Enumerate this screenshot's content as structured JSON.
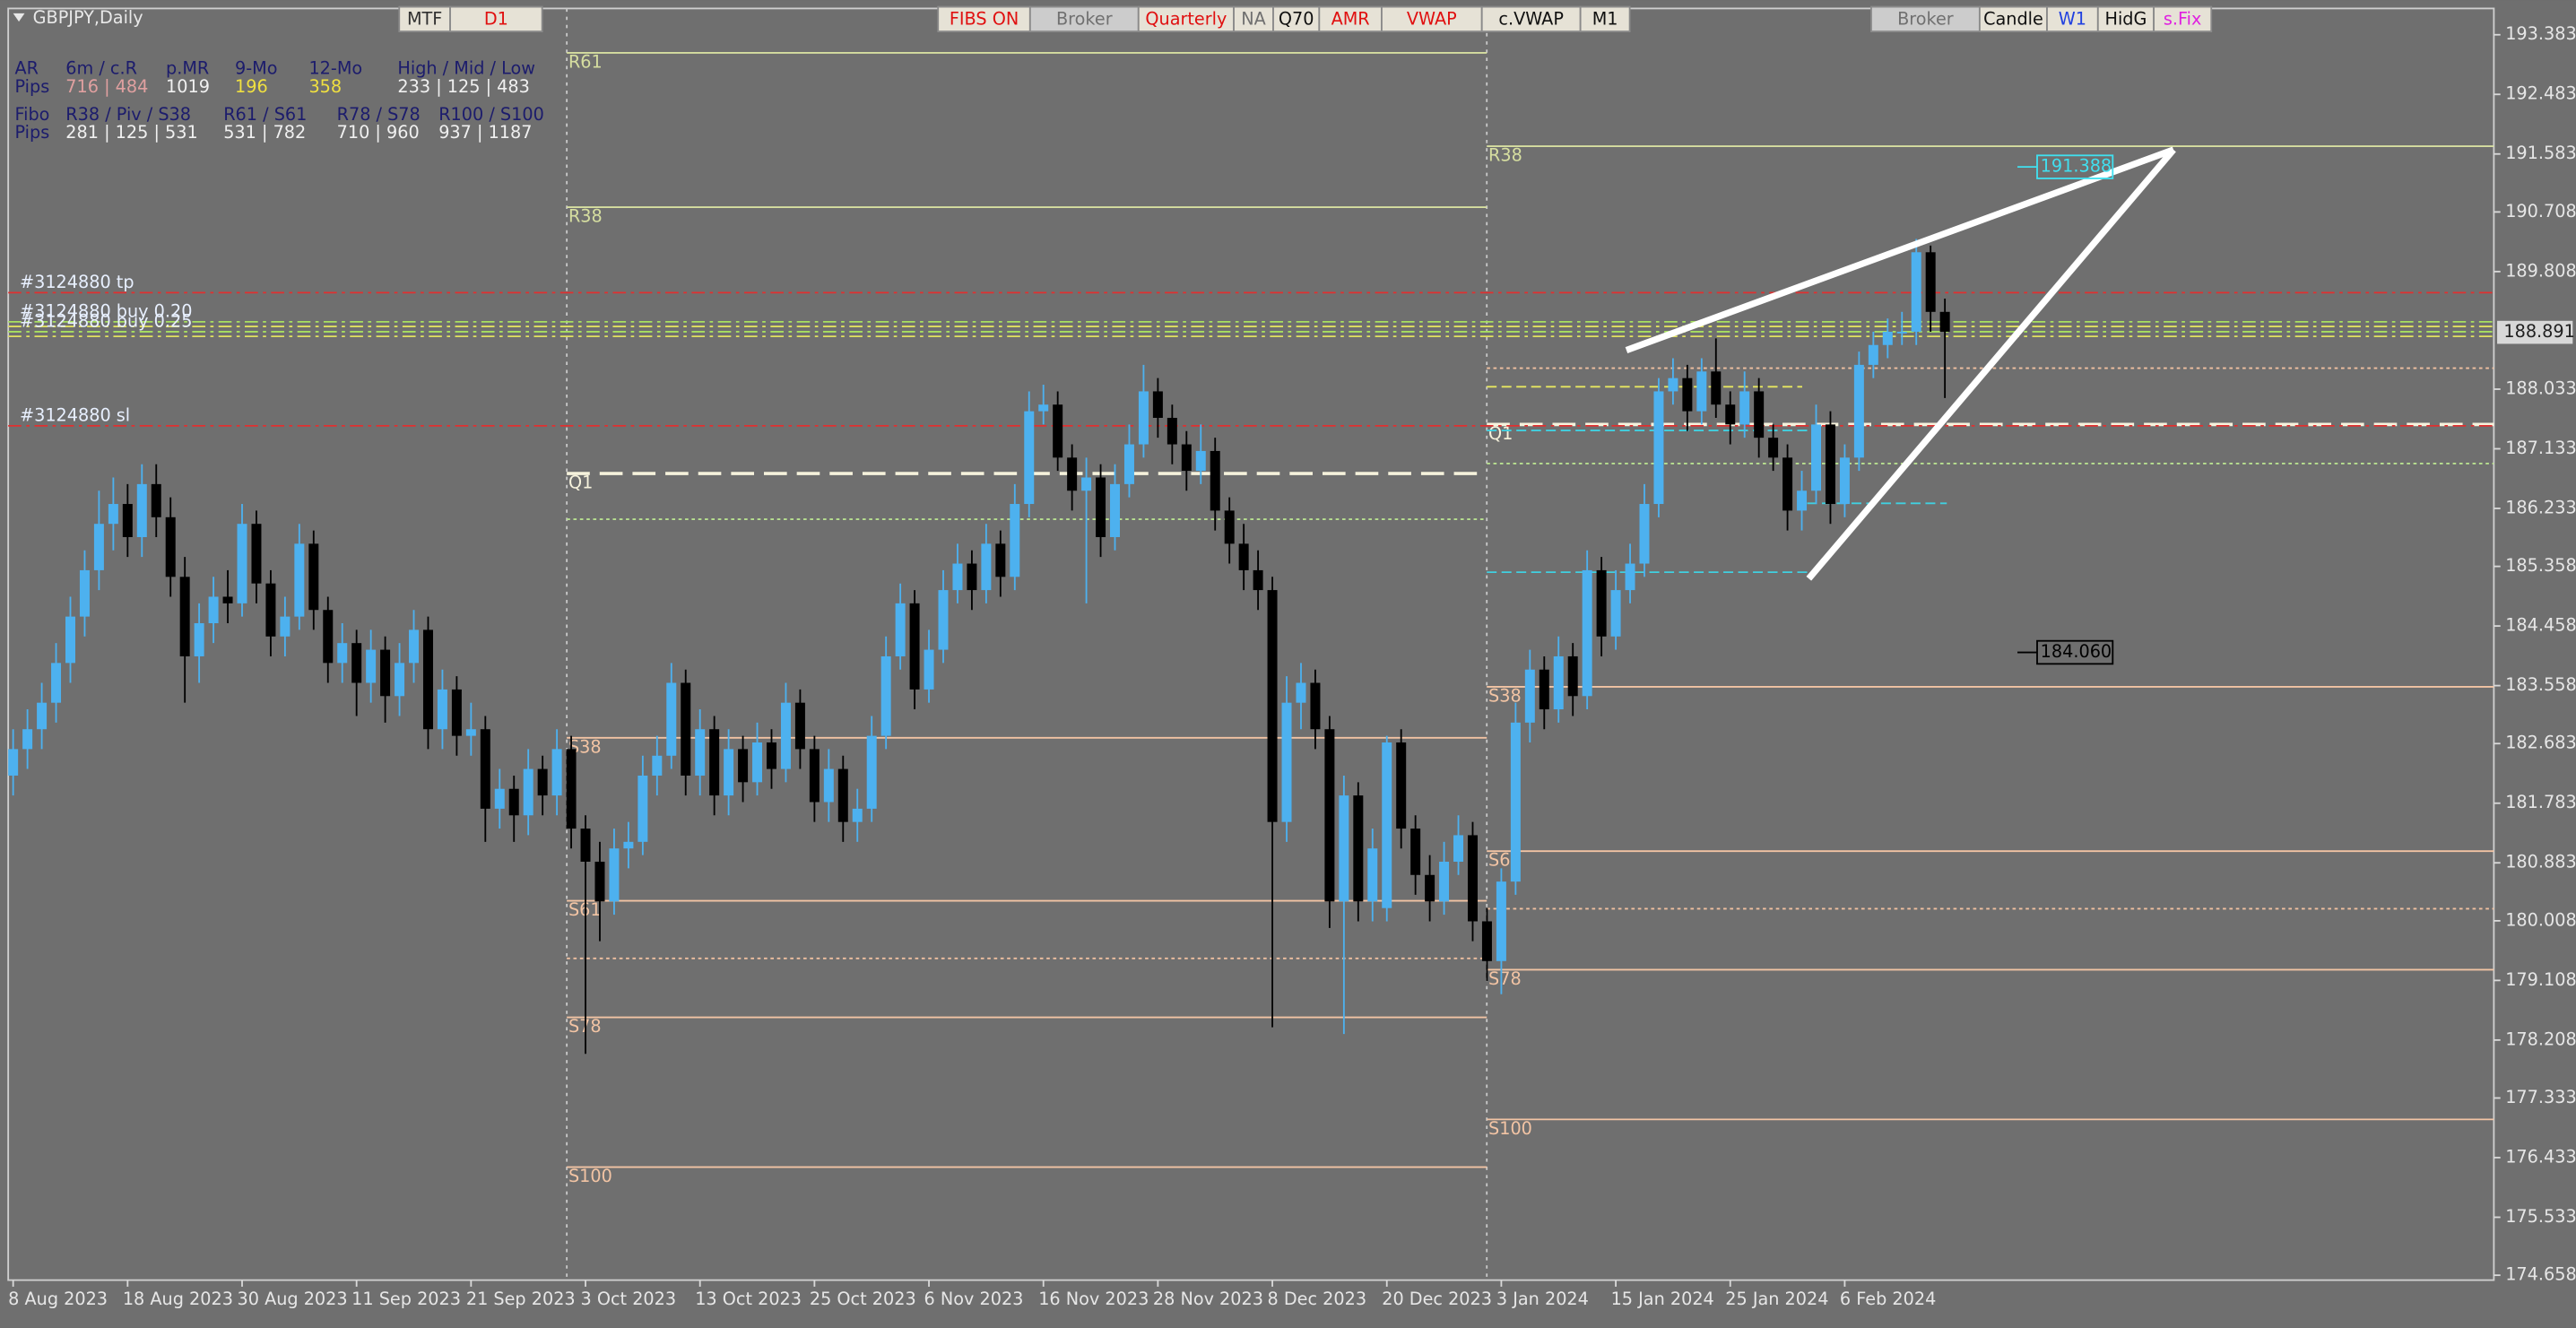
{
  "chart_data": {
    "type": "candlestick",
    "title": "GBPJPY,Daily",
    "up_color": "#4db1ef",
    "down_color": "#000000",
    "background": "#6f6f6f",
    "categories": [
      "8 Aug 2023",
      null,
      null,
      null,
      null,
      null,
      null,
      null,
      "18 Aug 2023",
      null,
      null,
      null,
      null,
      null,
      null,
      null,
      "30 Aug 2023",
      null,
      null,
      null,
      null,
      null,
      null,
      null,
      "11 Sep 2023",
      null,
      null,
      null,
      null,
      null,
      null,
      null,
      "21 Sep 2023",
      null,
      null,
      null,
      null,
      null,
      null,
      null,
      "3 Oct 2023",
      null,
      null,
      null,
      null,
      null,
      null,
      null,
      "13 Oct 2023",
      null,
      null,
      null,
      null,
      null,
      null,
      null,
      "25 Oct 2023",
      null,
      null,
      null,
      null,
      null,
      null,
      null,
      "6 Nov 2023",
      null,
      null,
      null,
      null,
      null,
      null,
      null,
      "16 Nov 2023",
      null,
      null,
      null,
      null,
      null,
      null,
      null,
      "28 Nov 2023",
      null,
      null,
      null,
      null,
      null,
      null,
      null,
      "8 Dec 2023",
      null,
      null,
      null,
      null,
      null,
      null,
      null,
      "20 Dec 2023",
      null,
      null,
      null,
      null,
      null,
      null,
      null,
      "3 Jan 2024",
      null,
      null,
      null,
      null,
      null,
      null,
      null,
      "15 Jan 2024",
      null,
      null,
      null,
      null,
      null,
      null,
      null,
      "25 Jan 2024",
      null,
      null,
      null,
      null,
      null,
      null,
      null,
      "6 Feb 2024",
      null,
      null,
      null,
      null,
      null,
      null,
      null
    ],
    "ohlc": [
      [
        182.2,
        182.9,
        181.9,
        182.6
      ],
      [
        182.6,
        183.2,
        182.3,
        182.9
      ],
      [
        182.9,
        183.6,
        182.6,
        183.3
      ],
      [
        183.3,
        184.2,
        183.0,
        183.9
      ],
      [
        183.9,
        184.9,
        183.6,
        184.6
      ],
      [
        184.6,
        185.6,
        184.3,
        185.3
      ],
      [
        185.3,
        186.5,
        185.0,
        186.0
      ],
      [
        186.0,
        186.7,
        185.6,
        186.3
      ],
      [
        186.3,
        186.6,
        185.5,
        185.8
      ],
      [
        185.8,
        186.9,
        185.5,
        186.6
      ],
      [
        186.6,
        186.9,
        185.8,
        186.1
      ],
      [
        186.1,
        186.4,
        184.9,
        185.2
      ],
      [
        185.2,
        185.5,
        183.3,
        184.0
      ],
      [
        184.0,
        184.8,
        183.6,
        184.5
      ],
      [
        184.5,
        185.2,
        184.2,
        184.9
      ],
      [
        184.9,
        185.3,
        184.5,
        184.8
      ],
      [
        184.8,
        186.3,
        184.6,
        186.0
      ],
      [
        186.0,
        186.2,
        184.8,
        185.1
      ],
      [
        185.1,
        185.3,
        184.0,
        184.3
      ],
      [
        184.3,
        184.9,
        184.0,
        184.6
      ],
      [
        184.6,
        186.0,
        184.4,
        185.7
      ],
      [
        185.7,
        185.9,
        184.4,
        184.7
      ],
      [
        184.7,
        184.9,
        183.6,
        183.9
      ],
      [
        183.9,
        184.5,
        183.6,
        184.2
      ],
      [
        184.2,
        184.4,
        183.1,
        183.6
      ],
      [
        183.6,
        184.4,
        183.3,
        184.1
      ],
      [
        184.1,
        184.3,
        183.0,
        183.4
      ],
      [
        183.4,
        184.2,
        183.1,
        183.9
      ],
      [
        183.9,
        184.7,
        183.6,
        184.4
      ],
      [
        184.4,
        184.6,
        182.6,
        182.9
      ],
      [
        182.9,
        183.8,
        182.6,
        183.5
      ],
      [
        183.5,
        183.7,
        182.5,
        182.8
      ],
      [
        182.8,
        183.3,
        182.5,
        182.9
      ],
      [
        182.9,
        183.1,
        181.2,
        181.7
      ],
      [
        181.7,
        182.3,
        181.4,
        182.0
      ],
      [
        182.0,
        182.2,
        181.2,
        181.6
      ],
      [
        181.6,
        182.6,
        181.3,
        182.3
      ],
      [
        182.3,
        182.5,
        181.6,
        181.9
      ],
      [
        181.9,
        182.9,
        181.6,
        182.6
      ],
      [
        182.6,
        182.8,
        181.1,
        181.4
      ],
      [
        181.4,
        181.6,
        178.0,
        180.9
      ],
      [
        180.9,
        181.2,
        179.7,
        180.3
      ],
      [
        180.3,
        181.4,
        180.1,
        181.1
      ],
      [
        181.1,
        181.5,
        180.8,
        181.2
      ],
      [
        181.2,
        182.5,
        181.0,
        182.2
      ],
      [
        182.2,
        182.8,
        181.9,
        182.5
      ],
      [
        182.5,
        183.9,
        182.3,
        183.6
      ],
      [
        183.6,
        183.8,
        181.9,
        182.2
      ],
      [
        182.2,
        183.2,
        181.9,
        182.9
      ],
      [
        182.9,
        183.1,
        181.6,
        181.9
      ],
      [
        181.9,
        182.9,
        181.6,
        182.6
      ],
      [
        182.6,
        182.8,
        181.8,
        182.1
      ],
      [
        182.1,
        183.0,
        181.9,
        182.7
      ],
      [
        182.7,
        182.9,
        182.0,
        182.3
      ],
      [
        182.3,
        183.6,
        182.1,
        183.3
      ],
      [
        183.3,
        183.5,
        182.3,
        182.6
      ],
      [
        182.6,
        182.8,
        181.5,
        181.8
      ],
      [
        181.8,
        182.6,
        181.5,
        182.3
      ],
      [
        182.3,
        182.5,
        181.2,
        181.5
      ],
      [
        181.5,
        182.0,
        181.2,
        181.7
      ],
      [
        181.7,
        183.1,
        181.5,
        182.8
      ],
      [
        182.8,
        184.3,
        182.6,
        184.0
      ],
      [
        184.0,
        185.1,
        183.8,
        184.8
      ],
      [
        184.8,
        185.0,
        183.2,
        183.5
      ],
      [
        183.5,
        184.4,
        183.3,
        184.1
      ],
      [
        184.1,
        185.3,
        183.9,
        185.0
      ],
      [
        185.0,
        185.7,
        184.8,
        185.4
      ],
      [
        185.4,
        185.6,
        184.7,
        185.0
      ],
      [
        185.0,
        186.0,
        184.8,
        185.7
      ],
      [
        185.7,
        185.9,
        184.9,
        185.2
      ],
      [
        185.2,
        186.6,
        185.0,
        186.3
      ],
      [
        186.3,
        188.0,
        186.1,
        187.7
      ],
      [
        187.7,
        188.1,
        187.5,
        187.8
      ],
      [
        187.8,
        188.0,
        186.8,
        187.0
      ],
      [
        187.0,
        187.2,
        186.2,
        186.5
      ],
      [
        186.5,
        187.0,
        184.8,
        186.7
      ],
      [
        186.7,
        186.9,
        185.5,
        185.8
      ],
      [
        185.8,
        186.9,
        185.6,
        186.6
      ],
      [
        186.6,
        187.5,
        186.4,
        187.2
      ],
      [
        187.2,
        188.4,
        187.0,
        188.0
      ],
      [
        188.0,
        188.2,
        187.3,
        187.6
      ],
      [
        187.6,
        187.8,
        186.9,
        187.2
      ],
      [
        187.2,
        187.4,
        186.5,
        186.8
      ],
      [
        186.8,
        187.5,
        186.6,
        187.1
      ],
      [
        187.1,
        187.3,
        185.9,
        186.2
      ],
      [
        186.2,
        186.4,
        185.4,
        185.7
      ],
      [
        185.7,
        186.0,
        185.0,
        185.3
      ],
      [
        185.3,
        185.6,
        184.7,
        185.0
      ],
      [
        185.0,
        185.2,
        178.4,
        181.5
      ],
      [
        181.5,
        183.7,
        181.2,
        183.3
      ],
      [
        183.3,
        183.9,
        182.9,
        183.6
      ],
      [
        183.6,
        183.8,
        182.6,
        182.9
      ],
      [
        182.9,
        183.1,
        179.9,
        180.3
      ],
      [
        180.3,
        182.2,
        178.3,
        181.9
      ],
      [
        181.9,
        182.1,
        180.0,
        180.3
      ],
      [
        180.3,
        181.4,
        180.0,
        181.1
      ],
      [
        180.2,
        182.8,
        180.0,
        182.7
      ],
      [
        182.7,
        182.9,
        181.1,
        181.4
      ],
      [
        181.4,
        181.6,
        180.4,
        180.7
      ],
      [
        180.7,
        181.0,
        180.0,
        180.3
      ],
      [
        180.3,
        181.2,
        180.1,
        180.9
      ],
      [
        180.9,
        181.6,
        180.7,
        181.3
      ],
      [
        181.3,
        181.5,
        179.7,
        180.0
      ],
      [
        180.0,
        180.2,
        179.1,
        179.4
      ],
      [
        179.4,
        180.8,
        178.9,
        180.6
      ],
      [
        180.6,
        183.3,
        180.4,
        183.0
      ],
      [
        183.0,
        184.1,
        182.7,
        183.8
      ],
      [
        183.8,
        184.0,
        182.9,
        183.2
      ],
      [
        183.2,
        184.3,
        183.0,
        184.0
      ],
      [
        184.0,
        184.2,
        183.1,
        183.4
      ],
      [
        183.4,
        185.6,
        183.2,
        185.3
      ],
      [
        185.3,
        185.5,
        184.0,
        184.3
      ],
      [
        184.3,
        185.3,
        184.1,
        185.0
      ],
      [
        185.0,
        185.7,
        184.8,
        185.4
      ],
      [
        185.4,
        186.6,
        185.2,
        186.3
      ],
      [
        186.3,
        188.2,
        186.1,
        188.0
      ],
      [
        188.0,
        188.5,
        187.8,
        188.2
      ],
      [
        188.2,
        188.4,
        187.4,
        187.7
      ],
      [
        187.7,
        188.5,
        187.5,
        188.3
      ],
      [
        188.3,
        188.8,
        187.6,
        187.8
      ],
      [
        187.8,
        188.0,
        187.2,
        187.5
      ],
      [
        187.5,
        188.3,
        187.3,
        188.0
      ],
      [
        188.0,
        188.2,
        187.0,
        187.3
      ],
      [
        187.3,
        187.5,
        186.8,
        187.0
      ],
      [
        187.0,
        187.2,
        185.9,
        186.2
      ],
      [
        186.2,
        186.8,
        185.9,
        186.5
      ],
      [
        186.5,
        187.8,
        186.3,
        187.5
      ],
      [
        187.5,
        187.7,
        186.0,
        186.3
      ],
      [
        186.3,
        187.2,
        186.1,
        187.0
      ],
      [
        187.0,
        188.6,
        186.8,
        188.4
      ],
      [
        188.4,
        188.9,
        188.2,
        188.7
      ],
      [
        188.7,
        189.1,
        188.5,
        188.9
      ],
      [
        188.9,
        189.2,
        188.7,
        188.9
      ],
      [
        188.9,
        190.3,
        188.7,
        190.1
      ],
      [
        190.1,
        190.2,
        188.9,
        189.2
      ],
      [
        189.2,
        189.4,
        187.9,
        188.9
      ]
    ],
    "ylim": [
      174.584,
      193.78
    ],
    "yticks": [
      193.383,
      192.483,
      191.583,
      190.708,
      189.808,
      188.033,
      187.133,
      186.233,
      185.358,
      184.458,
      183.558,
      182.683,
      181.783,
      180.883,
      180.008,
      179.108,
      178.208,
      177.333,
      176.433,
      175.533,
      174.658
    ],
    "current_price": 188.891,
    "levels": [
      [
        {
          "label": "R61",
          "value": 193.11,
          "style": "resistance"
        },
        {
          "label": "R38",
          "value": 190.78,
          "style": "resistance"
        },
        {
          "label": "Q1",
          "value": 186.76,
          "style": "pivot"
        },
        {
          "value": 186.07,
          "style": "minor-green"
        },
        {
          "label": "S38",
          "value": 182.77,
          "style": "support"
        },
        {
          "label": "S61",
          "value": 180.31,
          "style": "support"
        },
        {
          "value": 179.44,
          "style": "minor"
        },
        {
          "label": "S78",
          "value": 178.55,
          "style": "support"
        },
        {
          "label": "S100",
          "value": 176.29,
          "style": "support"
        }
      ],
      [
        {
          "label": "R38",
          "value": 191.7,
          "style": "resistance"
        },
        {
          "value": 188.35,
          "style": "minor"
        },
        {
          "label": "Q1",
          "value": 187.5,
          "style": "pivot"
        },
        {
          "value": 186.91,
          "style": "minor-green"
        },
        {
          "label": "S38",
          "value": 183.54,
          "style": "support"
        },
        {
          "label": "S61",
          "value": 181.06,
          "style": "support"
        },
        {
          "value": 180.19,
          "style": "minor"
        },
        {
          "label": "S78",
          "value": 179.27,
          "style": "support"
        },
        {
          "label": "S100",
          "value": 177.01,
          "style": "support"
        }
      ]
    ],
    "trade_lines": [
      {
        "label": "#3124880 tp",
        "value": 189.49,
        "color": "#e03030"
      },
      {
        "label": "#3124880 buy 0.20",
        "value": 189.05,
        "color": "#a8e060"
      },
      {
        "value": 188.98,
        "color": "#e0e060"
      },
      {
        "label": "#3124880 buy 0.25",
        "value": 188.9,
        "color": "#a8e060"
      },
      {
        "value": 188.83,
        "color": "#e0e060"
      },
      {
        "label": "#3124880 sl",
        "value": 187.48,
        "color": "#e03030"
      }
    ],
    "range_lines": [
      {
        "value": 188.07,
        "color": "#e8e860"
      },
      {
        "value": 187.41,
        "color": "#40d0e0"
      },
      {
        "value": 185.27,
        "color": "#40d0e0"
      },
      {
        "value": 186.31,
        "color": "#40d0e0"
      }
    ],
    "price_labels": [
      {
        "value": 191.388,
        "color": "#40e0f0"
      },
      {
        "value": 184.06,
        "label": "184.060",
        "color": "#000000"
      }
    ]
  },
  "toolbar": {
    "buttons": [
      "MTF",
      "D1",
      "FIBS ON",
      "Broker",
      "Quarterly",
      "NA",
      "Q70",
      "AMR",
      "VWAP",
      "c.VWAP",
      "M1",
      "Broker",
      "Candle",
      "W1",
      "HidG",
      "s.Fix"
    ]
  },
  "info_panel": {
    "rows": [
      [
        "AR",
        "6m / c.R",
        "p.MR",
        "9-Mo",
        "12-Mo",
        "High / Mid / Low"
      ],
      [
        "Pips",
        "716 | 484",
        "1019",
        "196",
        "358",
        "233 | 125 | 483"
      ],
      [
        "Fibo",
        "R38 / Piv / S38",
        "R61 / S61",
        "R78 / S78",
        "R100 / S100"
      ],
      [
        "Pips",
        "281 | 125 | 531",
        "531 | 782",
        "710 | 960",
        "937 | 1187"
      ]
    ]
  }
}
